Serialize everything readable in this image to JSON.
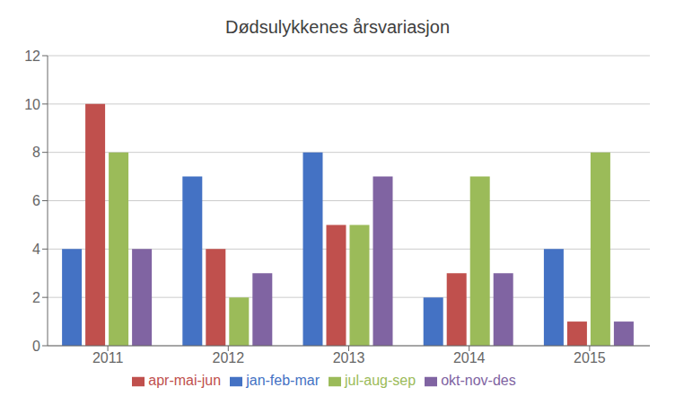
{
  "chart_data": {
    "type": "bar",
    "title": "Dødsulykkenes årsvariasjon",
    "categories": [
      "2011",
      "2012",
      "2013",
      "2014",
      "2015"
    ],
    "series": [
      {
        "name": "jan-feb-mar",
        "color": "#4472C4",
        "values": [
          4,
          7,
          8,
          2,
          4
        ]
      },
      {
        "name": "apr-mai-jun",
        "color": "#C0504D",
        "values": [
          10,
          4,
          5,
          3,
          1
        ]
      },
      {
        "name": "jul-aug-sep",
        "color": "#9BBB59",
        "values": [
          8,
          2,
          5,
          7,
          8
        ]
      },
      {
        "name": "okt-nov-des",
        "color": "#8064A2",
        "values": [
          4,
          3,
          7,
          3,
          1
        ]
      }
    ],
    "ylim": [
      0,
      12
    ],
    "yticks": [
      0,
      2,
      4,
      6,
      8,
      10,
      12
    ],
    "grid": true,
    "legend": "bottom"
  }
}
